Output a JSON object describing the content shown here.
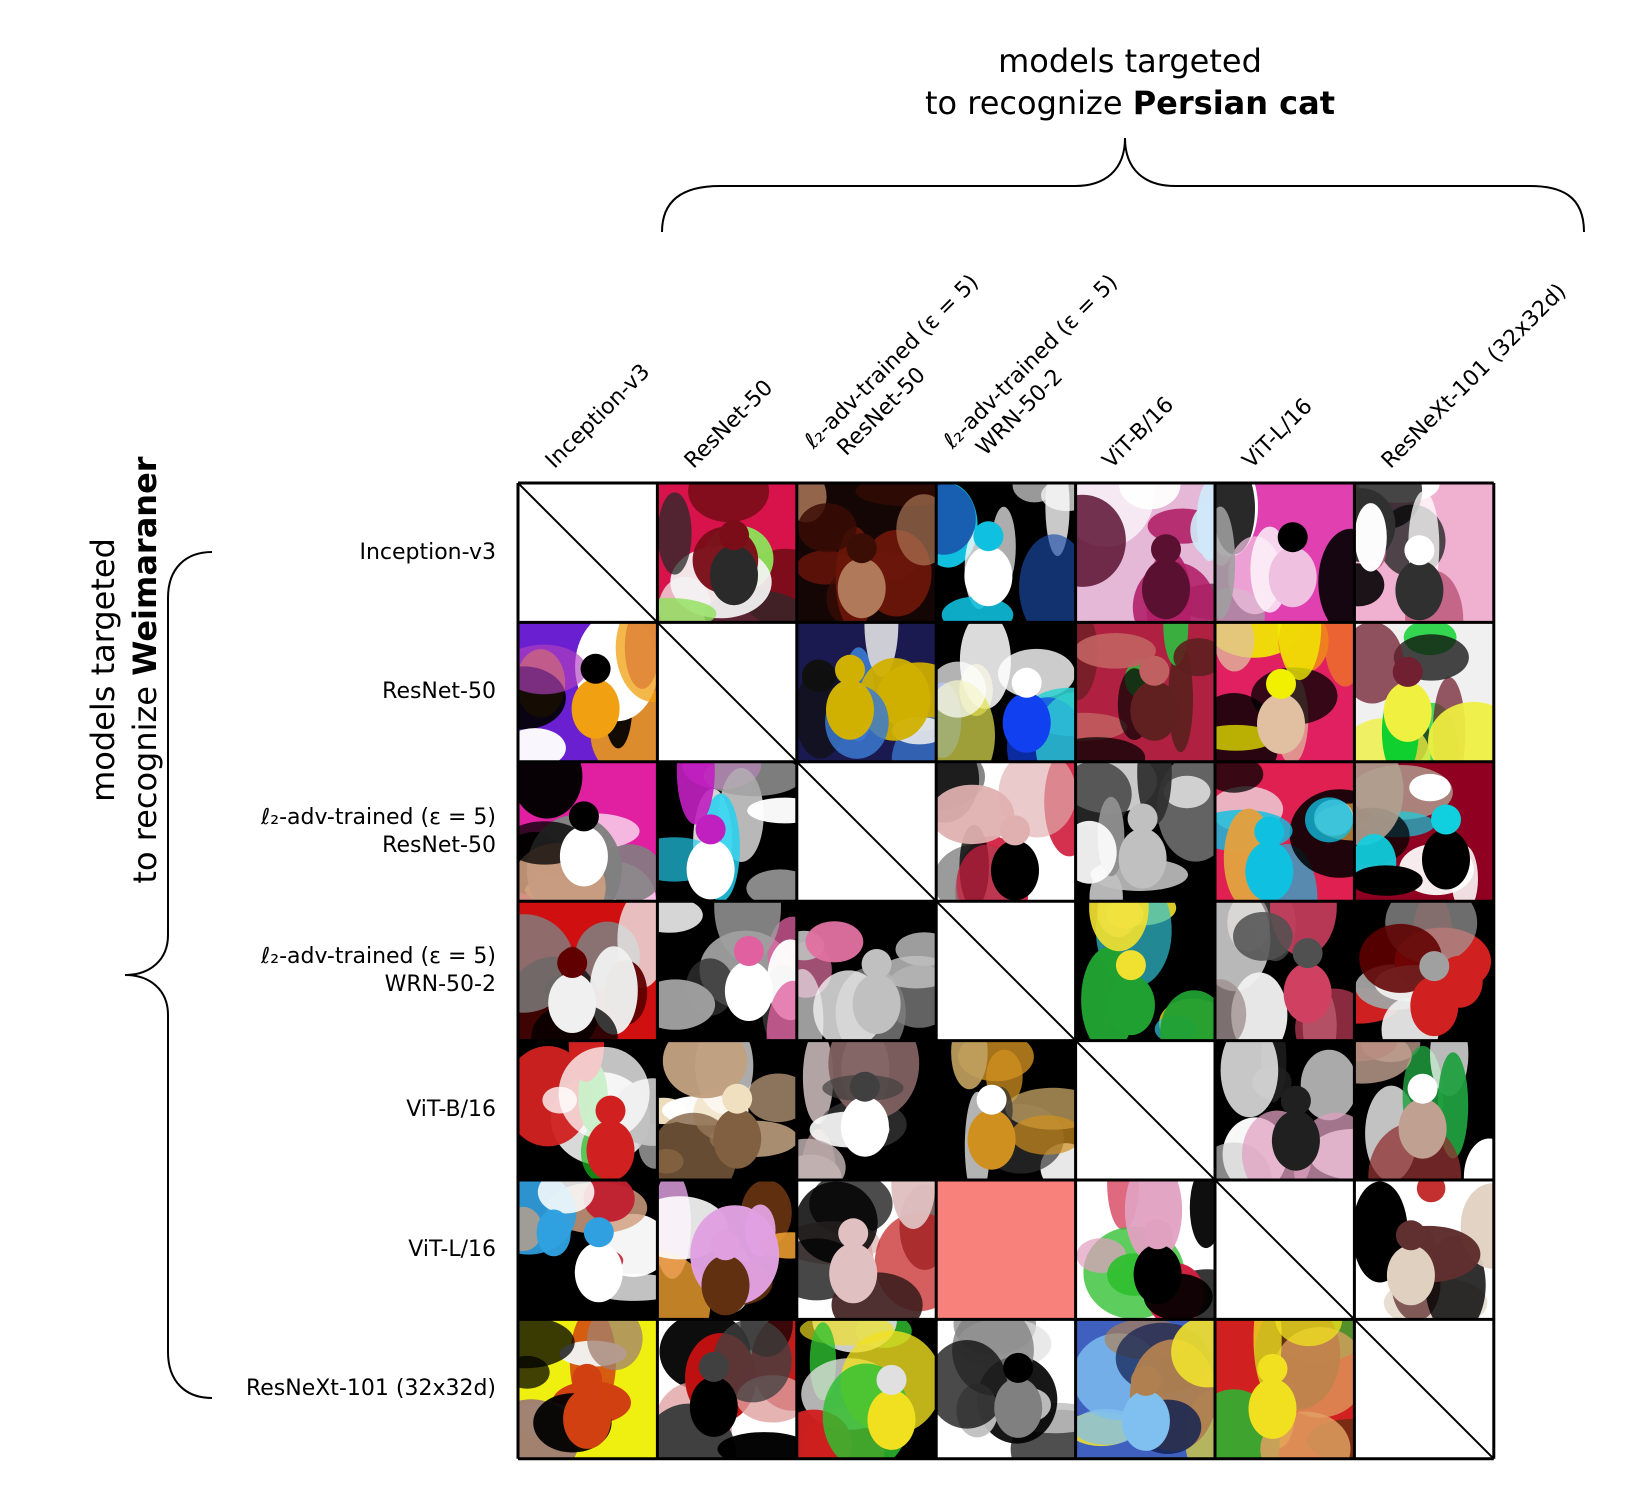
{
  "top_title": {
    "line1": "models targeted",
    "line2_prefix": "to recognize ",
    "line2_bold": "Persian cat"
  },
  "left_title": {
    "line1": "models targeted",
    "line2_prefix": "to recognize ",
    "line2_bold": "Weimaraner"
  },
  "columns": [
    {
      "line1": "Inception-v3",
      "line2": ""
    },
    {
      "line1": "ResNet-50",
      "line2": ""
    },
    {
      "line1": "ℓ₂-adv-trained (ε = 5)",
      "line2": "ResNet-50"
    },
    {
      "line1": "ℓ₂-adv-trained (ε = 5)",
      "line2": "WRN-50-2"
    },
    {
      "line1": "ViT-B/16",
      "line2": ""
    },
    {
      "line1": "ViT-L/16",
      "line2": ""
    },
    {
      "line1": "ResNeXt-101 (32x32d)",
      "line2": ""
    }
  ],
  "rows": [
    {
      "line1": "Inception-v3",
      "line2": ""
    },
    {
      "line1": "ResNet-50",
      "line2": ""
    },
    {
      "line1": "ℓ₂-adv-trained (ε = 5)",
      "line2": "ResNet-50"
    },
    {
      "line1": "ℓ₂-adv-trained (ε = 5)",
      "line2": "WRN-50-2"
    },
    {
      "line1": "ViT-B/16",
      "line2": ""
    },
    {
      "line1": "ViT-L/16",
      "line2": ""
    },
    {
      "line1": "ResNeXt-101 (32x32d)",
      "line2": ""
    }
  ],
  "failed_cell_color": "#f8817c",
  "failed_cells": [
    [
      5,
      3
    ]
  ],
  "cell_palettes": [
    [
      [
        "#ffffff"
      ],
      [
        "#d8124a",
        "#7a0d18",
        "#f4f4f4",
        "#2a2a2a",
        "#8ee05a"
      ],
      [
        "#150606",
        "#6a1509",
        "#b07a5a",
        "#3a0d05"
      ],
      [
        "#000000",
        "#ffffff",
        "#10c0e0",
        "#c9c9c9",
        "#1a4aa8"
      ],
      [
        "#e6b8d8",
        "#b02068",
        "#ffffff",
        "#d0e8f8",
        "#5a1030"
      ],
      [
        "#e040b0",
        "#ffffff",
        "#000000",
        "#f0c0e0",
        "#a0a0a0"
      ],
      [
        "#f0b0d0",
        "#ffffff",
        "#303030",
        "#c06080",
        "#000000"
      ]
    ],
    [
      [
        "#6a20d0",
        "#f0a010",
        "#000000",
        "#ffffff",
        "#b040c0"
      ],
      [
        "#ffffff"
      ],
      [
        "#1a1a50",
        "#3a7ad0",
        "#f0f0f0",
        "#d0b000",
        "#101010"
      ],
      [
        "#000000",
        "#ffffff",
        "#1040f0",
        "#30d0d0",
        "#e0e050"
      ],
      [
        "#b02040",
        "#602020",
        "#20d040",
        "#c06060",
        "#000000"
      ],
      [
        "#e02060",
        "#f0f000",
        "#f08020",
        "#000000",
        "#e0c0a0"
      ],
      [
        "#f0f0f0",
        "#10d030",
        "#101010",
        "#f0f040",
        "#702030"
      ]
    ],
    [
      [
        "#e020a0",
        "#000000",
        "#ffffff",
        "#808080",
        "#d0a080"
      ],
      [
        "#000000",
        "#ffffff",
        "#20d0f0",
        "#a0a0a0",
        "#c020c0"
      ],
      [
        "#ffffff"
      ],
      [
        "#ffffff",
        "#d02040",
        "#808080",
        "#000000",
        "#e0b0b0"
      ],
      [
        "#000000",
        "#ffffff",
        "#c0c0c0",
        "#303030",
        "#909090"
      ],
      [
        "#e02050",
        "#10c0e0",
        "#000000",
        "#f0f0f0",
        "#e0a040"
      ],
      [
        "#900020",
        "#ffffff",
        "#b0a090",
        "#10d0e0",
        "#000000"
      ]
    ],
    [
      [
        "#d01010",
        "#000000",
        "#808080",
        "#f0f0f0",
        "#600000"
      ],
      [
        "#000000",
        "#a0a0a0",
        "#ffffff",
        "#e060a0",
        "#303030"
      ],
      [
        "#000000",
        "#c0c0c0",
        "#808080",
        "#e070a0",
        "#f0f0f0"
      ],
      [
        "#ffffff"
      ],
      [
        "#000000",
        "#f0e030",
        "#30c0d0",
        "#20a030",
        "#ffffff"
      ],
      [
        "#000000",
        "#a09090",
        "#d04060",
        "#f0f0f0",
        "#505050"
      ],
      [
        "#000000",
        "#d02020",
        "#a0a0a0",
        "#f0f0f0",
        "#600000"
      ]
    ],
    [
      [
        "#000000",
        "#ffffff",
        "#20c020",
        "#c0c0c0",
        "#d02020"
      ],
      [
        "#000000",
        "#c0a080",
        "#f0e0c0",
        "#806040",
        "#ffffff"
      ],
      [
        "#000000",
        "#c0b0b0",
        "#ffffff",
        "#806060",
        "#404040"
      ],
      [
        "#000000",
        "#d09020",
        "#ffffff",
        "#c0a060",
        "#303030"
      ],
      [
        "#ffffff"
      ],
      [
        "#000000",
        "#ffffff",
        "#d0d0d0",
        "#202020",
        "#e0a0c0"
      ],
      [
        "#000000",
        "#ffffff",
        "#c0a090",
        "#20a040",
        "#903030"
      ]
    ],
    [
      [
        "#000000",
        "#ffffff",
        "#d0a080",
        "#30a0e0",
        "#c02030"
      ],
      [
        "#000000",
        "#e0a0e0",
        "#f0a030",
        "#ffffff",
        "#603010"
      ],
      [
        "#ffffff",
        "#000000",
        "#c01010",
        "#e0c0c0",
        "#402020"
      ],
      [
        "#f8817c"
      ],
      [
        "#ffffff",
        "#000000",
        "#d02040",
        "#30c030",
        "#e0a0c0"
      ],
      [
        "#ffffff"
      ],
      [
        "#ffffff",
        "#000000",
        "#c02020",
        "#e0d0c0",
        "#603030"
      ]
    ],
    [
      [
        "#f0f010",
        "#000000",
        "#d04010",
        "#f0f0f0",
        "#a08070"
      ],
      [
        "#ffffff",
        "#000000",
        "#c01010",
        "#e0a0a0",
        "#404040"
      ],
      [
        "#000000",
        "#30c030",
        "#e0e0e0",
        "#d02020",
        "#f0e020"
      ],
      [
        "#ffffff",
        "#000000",
        "#c0c0c0",
        "#808080",
        "#e0e0e0"
      ],
      [
        "#4060c0",
        "#f0e030",
        "#80c0f0",
        "#b08050",
        "#102050"
      ],
      [
        "#d02020",
        "#f0e020",
        "#30b030",
        "#603010",
        "#e0a060"
      ],
      [
        "#ffffff"
      ]
    ]
  ]
}
